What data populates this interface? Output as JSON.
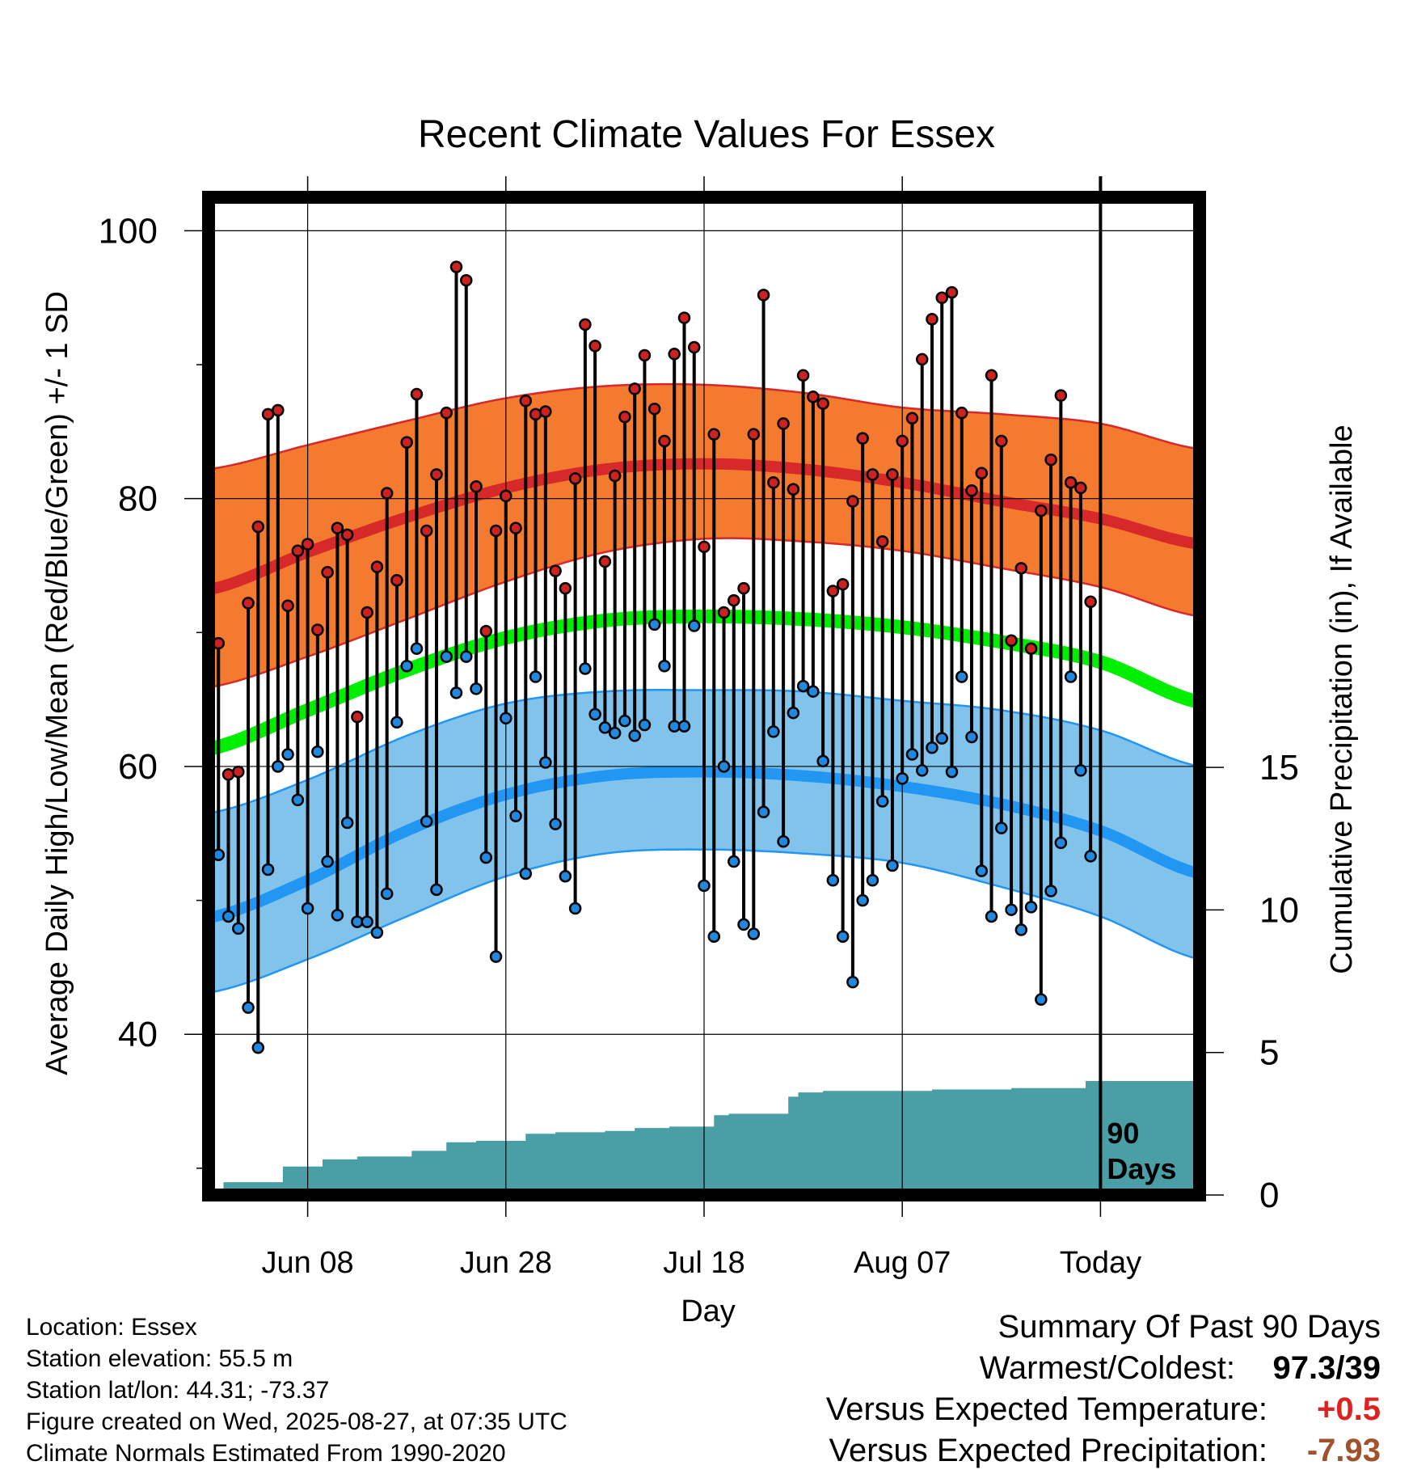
{
  "chart_data": {
    "type": "line",
    "title": "Recent Climate Values For Essex",
    "xlabel": "Day",
    "ylabel_left": "Average Daily High/Low/Mean (Red/Blue/Green) +/- 1 SD",
    "ylabel_right": "Cumulative Precipitation (in), If Available",
    "x_tick_labels": [
      "Jun 08",
      "Jun 28",
      "Jul 18",
      "Aug 07",
      "Today"
    ],
    "x_tick_days": [
      10,
      30,
      50,
      70,
      90
    ],
    "x_range_days": [
      0,
      100
    ],
    "y_left_ticks": [
      40,
      60,
      80,
      100
    ],
    "y_left_range": [
      28,
      102.5
    ],
    "y_right_ticks": [
      0,
      5,
      10,
      15
    ],
    "y_right_range": [
      0,
      35
    ],
    "grid": true,
    "today_day": 90,
    "today_label": [
      "90",
      "Days"
    ],
    "colors": {
      "high_band": "#f47a30",
      "high_line": "#d7282a",
      "mean_line": "#00ee00",
      "low_band": "#82c3eb",
      "low_line": "#2196f3",
      "high_dot": "#cc2222",
      "low_dot": "#2288dd",
      "precip": "#4a9ea6",
      "frame": "#000000"
    },
    "normals": {
      "day": [
        0,
        10,
        20,
        30,
        40,
        50,
        60,
        70,
        80,
        90,
        100
      ],
      "high_mean": [
        73.2,
        76.0,
        78.6,
        80.8,
        82.2,
        82.6,
        82.2,
        81.2,
        79.8,
        78.5,
        76.6
      ],
      "high_sd_upper": [
        82.2,
        84.0,
        85.8,
        87.5,
        88.4,
        88.5,
        87.9,
        86.8,
        86.3,
        85.6,
        83.7
      ],
      "high_sd_lower": [
        65.9,
        68.2,
        71.0,
        73.8,
        76.0,
        77.0,
        76.8,
        76.1,
        74.8,
        73.4,
        71.2
      ],
      "mean": [
        61.3,
        64.2,
        67.2,
        69.6,
        70.9,
        71.2,
        71.0,
        70.4,
        69.3,
        67.8,
        64.8
      ],
      "low_mean": [
        48.7,
        51.5,
        55.2,
        57.9,
        59.3,
        59.6,
        59.3,
        58.5,
        57.2,
        55.2,
        52.0
      ],
      "low_sd_upper": [
        56.5,
        59.0,
        62.3,
        64.7,
        65.6,
        65.7,
        65.6,
        64.9,
        64.2,
        62.7,
        60.0
      ],
      "low_sd_lower": [
        43.1,
        45.6,
        48.8,
        51.8,
        53.5,
        53.8,
        53.5,
        52.8,
        51.0,
        48.8,
        45.6
      ]
    },
    "daily_high": [
      71.3,
      69.2,
      59.4,
      59.6,
      72.2,
      77.9,
      86.3,
      86.6,
      72.0,
      76.1,
      76.6,
      70.2,
      74.5,
      77.8,
      77.3,
      63.7,
      71.5,
      74.9,
      80.4,
      73.9,
      84.2,
      87.8,
      77.6,
      81.8,
      86.4,
      97.3,
      96.3,
      80.9,
      70.1,
      77.6,
      80.2,
      77.8,
      87.3,
      86.3,
      86.5,
      74.6,
      73.3,
      81.5,
      93.0,
      91.4,
      75.3,
      81.7,
      86.1,
      88.2,
      90.7,
      86.7,
      84.3,
      90.8,
      93.5,
      91.3,
      76.4,
      84.8,
      71.5,
      72.4,
      73.3,
      84.8,
      95.2,
      81.2,
      85.6,
      80.7,
      89.2,
      87.6,
      87.1,
      73.1,
      73.6,
      79.8,
      84.5,
      81.8,
      76.8,
      81.8,
      84.3,
      86.0,
      90.4,
      93.4,
      95.0,
      95.4,
      86.4,
      80.6,
      81.9,
      89.2,
      84.3,
      69.4,
      74.8,
      68.8,
      79.1,
      82.9,
      87.7,
      81.2,
      80.8,
      72.3
    ],
    "daily_low": [
      52.7,
      53.4,
      48.8,
      47.9,
      42.0,
      39.0,
      52.3,
      60.0,
      60.9,
      57.5,
      49.4,
      61.1,
      52.9,
      48.9,
      55.8,
      48.4,
      48.4,
      47.6,
      50.5,
      63.3,
      67.5,
      68.8,
      55.9,
      50.8,
      68.2,
      65.5,
      68.2,
      65.8,
      53.2,
      45.8,
      63.6,
      56.3,
      52.0,
      66.7,
      60.3,
      55.7,
      51.8,
      49.4,
      67.3,
      63.9,
      62.9,
      62.5,
      63.4,
      62.3,
      63.1,
      70.6,
      67.5,
      63.0,
      63.0,
      70.5,
      51.1,
      47.3,
      60.0,
      52.9,
      48.2,
      47.5,
      56.6,
      62.6,
      54.4,
      64.0,
      66.0,
      65.6,
      60.4,
      51.5,
      47.3,
      43.9,
      50.0,
      51.5,
      57.4,
      52.6,
      59.1,
      60.9,
      59.7,
      61.4,
      62.1,
      59.6,
      66.7,
      62.2,
      52.2,
      48.8,
      55.4,
      49.3,
      47.8,
      49.5,
      42.6,
      50.7,
      54.3,
      66.7,
      59.7,
      53.3
    ],
    "cumulative_precip": {
      "day": [
        0,
        1.5,
        1.5,
        7.5,
        7.5,
        11.5,
        11.5,
        15.0,
        15.0,
        20.5,
        20.5,
        24.0,
        24.0,
        27.0,
        27.0,
        32.0,
        32.0,
        35.0,
        35.0,
        40.0,
        40.0,
        43.0,
        43.0,
        46.5,
        46.5,
        51.0,
        51.0,
        52.5,
        52.5,
        58.5,
        58.5,
        59.5,
        59.5,
        62.0,
        62.0,
        73.0,
        73.0,
        81.0,
        81.0,
        88.5,
        88.5,
        92.0,
        92.0,
        99.5
      ],
      "inches": [
        0,
        0,
        0.45,
        0.45,
        1.0,
        1.0,
        1.25,
        1.25,
        1.35,
        1.35,
        1.55,
        1.55,
        1.85,
        1.85,
        1.9,
        1.9,
        2.15,
        2.15,
        2.2,
        2.2,
        2.25,
        2.25,
        2.35,
        2.35,
        2.4,
        2.4,
        2.8,
        2.8,
        2.85,
        2.85,
        3.45,
        3.45,
        3.6,
        3.6,
        3.65,
        3.65,
        3.7,
        3.7,
        3.75,
        3.75,
        4.0,
        4.0,
        4.0,
        4.0
      ]
    }
  },
  "footer": {
    "location": "Location: Essex",
    "elevation": "Station elevation: 55.5 m",
    "latlon": "Station lat/lon: 44.31; -73.37",
    "created": "Figure created on Wed, 2025-08-27, at 07:35 UTC",
    "normals_note": "Climate Normals Estimated From 1990-2020"
  },
  "summary": {
    "heading": "Summary Of Past 90 Days",
    "warmest_coldest_label": "Warmest/Coldest:",
    "warmest_coldest_value": "97.3/39",
    "temp_vs_expected_label": "Versus Expected Temperature:",
    "temp_vs_expected_value": "+0.5",
    "temp_vs_expected_color": "#dd2222",
    "precip_vs_expected_label": "Versus Expected Precipitation:",
    "precip_vs_expected_value": "-7.93",
    "precip_vs_expected_color": "#a0522d"
  }
}
